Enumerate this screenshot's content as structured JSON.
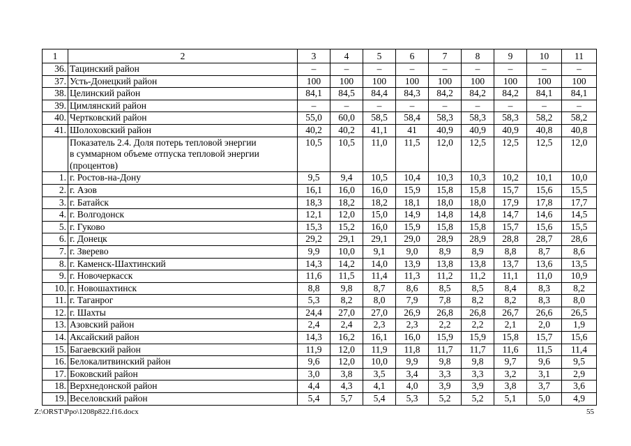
{
  "footer": {
    "path": "Z:\\ORST\\Ppo\\1208p822.f16.docx",
    "page_number": "55"
  },
  "table": {
    "header": [
      "1",
      "2",
      "3",
      "4",
      "5",
      "6",
      "7",
      "8",
      "9",
      "10",
      "11"
    ],
    "rows": [
      {
        "num": "36.",
        "name": "Тацинский район",
        "values": [
          "–",
          "–",
          "–",
          "–",
          "–",
          "–",
          "–",
          "–",
          "–"
        ]
      },
      {
        "num": "37.",
        "name": "Усть-Донецкий район",
        "values": [
          "100",
          "100",
          "100",
          "100",
          "100",
          "100",
          "100",
          "100",
          "100"
        ]
      },
      {
        "num": "38.",
        "name": "Целинский район",
        "values": [
          "84,1",
          "84,5",
          "84,4",
          "84,3",
          "84,2",
          "84,2",
          "84,2",
          "84,1",
          "84,1"
        ]
      },
      {
        "num": "39.",
        "name": "Цимлянский район",
        "values": [
          "–",
          "–",
          "–",
          "–",
          "–",
          "–",
          "–",
          "–",
          "–"
        ]
      },
      {
        "num": "40.",
        "name": "Чертковский район",
        "values": [
          "55,0",
          "60,0",
          "58,5",
          "58,4",
          "58,3",
          "58,3",
          "58,3",
          "58,2",
          "58,2"
        ]
      },
      {
        "num": "41.",
        "name": "Шолоховский район",
        "values": [
          "40,2",
          "40,2",
          "41,1",
          "41",
          "40,9",
          "40,9",
          "40,9",
          "40,8",
          "40,8"
        ]
      },
      {
        "num": "",
        "name": "Показатель 2.4. Доля потерь тепловой энергии\nв суммарном объеме отпуска тепловой энергии\n(процентов)",
        "values": [
          "10,5",
          "10,5",
          "11,0",
          "11,5",
          "12,0",
          "12,5",
          "12,5",
          "12,5",
          "12,0"
        ]
      },
      {
        "num": "1.",
        "name": "г. Ростов-на-Дону",
        "values": [
          "9,5",
          "9,4",
          "10,5",
          "10,4",
          "10,3",
          "10,3",
          "10,2",
          "10,1",
          "10,0"
        ]
      },
      {
        "num": "2.",
        "name": "г. Азов",
        "values": [
          "16,1",
          "16,0",
          "16,0",
          "15,9",
          "15,8",
          "15,8",
          "15,7",
          "15,6",
          "15,5"
        ]
      },
      {
        "num": "3.",
        "name": "г. Батайск",
        "values": [
          "18,3",
          "18,2",
          "18,2",
          "18,1",
          "18,0",
          "18,0",
          "17,9",
          "17,8",
          "17,7"
        ]
      },
      {
        "num": "4.",
        "name": "г. Волгодонск",
        "values": [
          "12,1",
          "12,0",
          "15,0",
          "14,9",
          "14,8",
          "14,8",
          "14,7",
          "14,6",
          "14,5"
        ]
      },
      {
        "num": "5.",
        "name": "г. Гуково",
        "values": [
          "15,3",
          "15,2",
          "16,0",
          "15,9",
          "15,8",
          "15,8",
          "15,7",
          "15,6",
          "15,5"
        ]
      },
      {
        "num": "6.",
        "name": "г. Донецк",
        "values": [
          "29,2",
          "29,1",
          "29,1",
          "29,0",
          "28,9",
          "28,9",
          "28,8",
          "28,7",
          "28,6"
        ]
      },
      {
        "num": "7.",
        "name": "г. Зверево",
        "values": [
          "9,9",
          "10,0",
          "9,1",
          "9,0",
          "8,9",
          "8,9",
          "8,8",
          "8,7",
          "8,6"
        ]
      },
      {
        "num": "8.",
        "name": "г. Каменск-Шахтинский",
        "values": [
          "14,3",
          "14,2",
          "14,0",
          "13,9",
          "13,8",
          "13,8",
          "13,7",
          "13,6",
          "13,5"
        ]
      },
      {
        "num": "9.",
        "name": "г. Новочеркасск",
        "values": [
          "11,6",
          "11,5",
          "11,4",
          "11,3",
          "11,2",
          "11,2",
          "11,1",
          "11,0",
          "10,9"
        ]
      },
      {
        "num": "10.",
        "name": "г. Новошахтинск",
        "values": [
          "8,8",
          "9,8",
          "8,7",
          "8,6",
          "8,5",
          "8,5",
          "8,4",
          "8,3",
          "8,2"
        ]
      },
      {
        "num": "11.",
        "name": "г. Таганрог",
        "values": [
          "5,3",
          "8,2",
          "8,0",
          "7,9",
          "7,8",
          "8,2",
          "8,2",
          "8,3",
          "8,0"
        ]
      },
      {
        "num": "12.",
        "name": "г. Шахты",
        "values": [
          "24,4",
          "27,0",
          "27,0",
          "26,9",
          "26,8",
          "26,8",
          "26,7",
          "26,6",
          "26,5"
        ]
      },
      {
        "num": "13.",
        "name": "Азовский район",
        "values": [
          "2,4",
          "2,4",
          "2,3",
          "2,3",
          "2,2",
          "2,2",
          "2,1",
          "2,0",
          "1,9"
        ]
      },
      {
        "num": "14.",
        "name": "Аксайский район",
        "values": [
          "14,3",
          "16,2",
          "16,1",
          "16,0",
          "15,9",
          "15,9",
          "15,8",
          "15,7",
          "15,6"
        ]
      },
      {
        "num": "15.",
        "name": "Багаевский район",
        "values": [
          "11,9",
          "12,0",
          "11,9",
          "11,8",
          "11,7",
          "11,7",
          "11,6",
          "11,5",
          "11,4"
        ]
      },
      {
        "num": "16.",
        "name": "Белокалитвинский район",
        "values": [
          "9,6",
          "12,0",
          "10,0",
          "9,9",
          "9,8",
          "9,8",
          "9,7",
          "9,6",
          "9,5"
        ]
      },
      {
        "num": "17.",
        "name": "Боковский район",
        "values": [
          "3,0",
          "3,8",
          "3,5",
          "3,4",
          "3,3",
          "3,3",
          "3,2",
          "3,1",
          "2,9"
        ]
      },
      {
        "num": "18.",
        "name": "Верхнедонской район",
        "values": [
          "4,4",
          "4,3",
          "4,1",
          "4,0",
          "3,9",
          "3,9",
          "3,8",
          "3,7",
          "3,6"
        ]
      },
      {
        "num": "19.",
        "name": "Веселовский район",
        "values": [
          "5,4",
          "5,7",
          "5,4",
          "5,3",
          "5,2",
          "5,2",
          "5,1",
          "5,0",
          "4,9"
        ]
      }
    ]
  }
}
